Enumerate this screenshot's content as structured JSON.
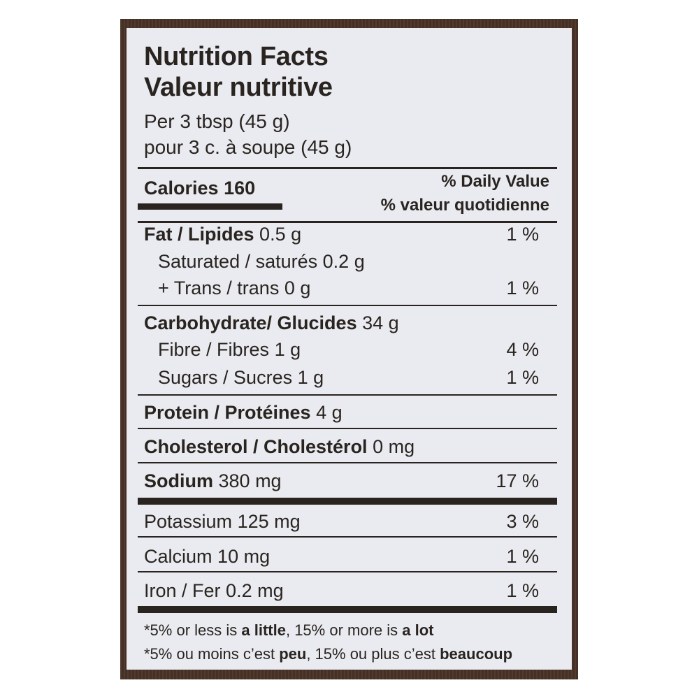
{
  "title_en": "Nutrition Facts",
  "title_fr": "Valeur nutritive",
  "serving_en": "Per 3 tbsp (45 g)",
  "serving_fr": "pour 3 c. à soupe (45 g)",
  "calories": {
    "label": "Calories",
    "value": "160"
  },
  "dv_header_en": "% Daily Value",
  "dv_header_fr": "% valeur quotidienne",
  "nutrients": [
    {
      "label": "Fat / Lipides",
      "amount": "0.5 g",
      "dv": "1 %"
    },
    {
      "label": "Saturated / saturés",
      "amount": "0.2 g",
      "dv": ""
    },
    {
      "label": "+ Trans / trans",
      "amount": "0 g",
      "dv": "1 %"
    },
    {
      "label": "Carbohydrate/ Glucides",
      "amount": "34 g",
      "dv": ""
    },
    {
      "label": "Fibre / Fibres",
      "amount": "1 g",
      "dv": "4 %"
    },
    {
      "label": "Sugars / Sucres",
      "amount": "1 g",
      "dv": "1 %"
    },
    {
      "label": "Protein / Protéines",
      "amount": "4 g",
      "dv": ""
    },
    {
      "label": "Cholesterol / Cholestérol",
      "amount": "0 mg",
      "dv": ""
    },
    {
      "label": "Sodium",
      "amount": "380 mg",
      "dv": "17 %"
    },
    {
      "label": "Potassium",
      "amount": "125 mg",
      "dv": "3 %"
    },
    {
      "label": "Calcium",
      "amount": "10 mg",
      "dv": "1 %"
    },
    {
      "label": "Iron / Fer",
      "amount": "0.2 mg",
      "dv": "1 %"
    }
  ],
  "footnote_en": {
    "p1": "*5% or less is ",
    "b1": "a little",
    "p2": ", 15% or more is ",
    "b2": "a lot"
  },
  "footnote_fr": {
    "p1": "*5% ou moins c’est ",
    "b1": "peu",
    "p2": ", 15% ou plus c’est ",
    "b2": "beaucoup"
  },
  "colors": {
    "frame": "#4a3226",
    "panel": "#e9ebf0",
    "text": "#2a2420"
  }
}
